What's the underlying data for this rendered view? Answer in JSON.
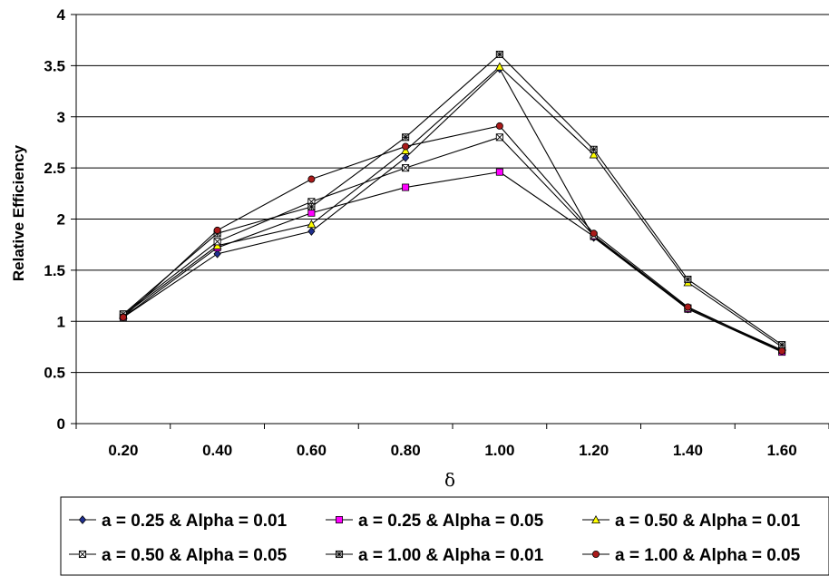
{
  "chart_data": {
    "type": "line",
    "title": "",
    "xlabel": "δ",
    "ylabel": "Relative Efficiency",
    "categories": [
      "0.20",
      "0.40",
      "0.60",
      "0.80",
      "1.00",
      "1.20",
      "1.40",
      "1.60"
    ],
    "ylim": [
      0,
      4
    ],
    "yticks": [
      "0",
      "0.5",
      "1",
      "1.5",
      "2",
      "2.5",
      "3",
      "3.5",
      "4"
    ],
    "grid": true,
    "legend_position": "bottom",
    "series": [
      {
        "name": "a = 0.25 & Alpha = 0.01",
        "marker": "diamond",
        "color": "#1f2f8f",
        "values": [
          1.04,
          1.66,
          1.88,
          2.6,
          3.47,
          1.82,
          1.12,
          0.71
        ]
      },
      {
        "name": "a = 0.25 & Alpha = 0.05",
        "marker": "square",
        "color": "#ff00ff",
        "values": [
          1.04,
          1.72,
          2.06,
          2.31,
          2.46,
          1.83,
          1.12,
          0.7
        ]
      },
      {
        "name": "a = 0.50 & Alpha = 0.01",
        "marker": "triangle",
        "color": "#ffff00",
        "values": [
          1.06,
          1.74,
          1.95,
          2.67,
          3.49,
          2.63,
          1.38,
          0.75
        ]
      },
      {
        "name": "a = 0.50 & Alpha = 0.05",
        "marker": "x-square",
        "color": "#ffffff",
        "values": [
          1.07,
          1.78,
          2.17,
          2.5,
          2.8,
          1.84,
          1.13,
          0.72
        ]
      },
      {
        "name": "a = 1.00 & Alpha = 0.01",
        "marker": "star-square",
        "color": "#cccccc",
        "values": [
          1.07,
          1.86,
          2.12,
          2.8,
          3.61,
          2.68,
          1.41,
          0.77
        ]
      },
      {
        "name": "a = 1.00 & Alpha = 0.05",
        "marker": "circle",
        "color": "#aa1a1a",
        "values": [
          1.04,
          1.89,
          2.39,
          2.71,
          2.91,
          1.86,
          1.14,
          0.71
        ]
      }
    ]
  }
}
